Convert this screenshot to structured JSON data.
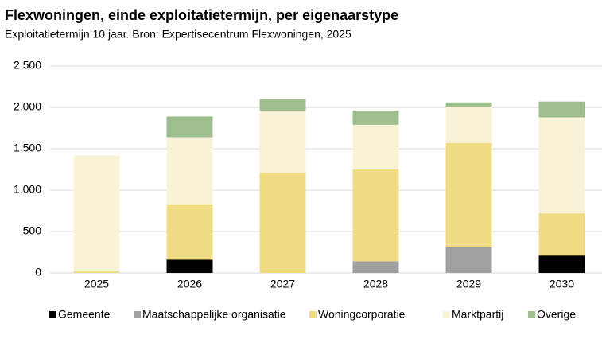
{
  "chart_data": {
    "type": "stacked_bar",
    "title": "Flexwoningen, einde exploitatietermijn, per eigenaarstype",
    "subtitle": "Exploitatietermijn 10 jaar. Bron: Expertisecentrum Flexwoningen, 2025",
    "categories": [
      "2025",
      "2026",
      "2027",
      "2028",
      "2029",
      "2030"
    ],
    "series": [
      {
        "name": "Gemeente",
        "color": "#000000",
        "values": [
          0,
          160,
          0,
          0,
          0,
          210
        ]
      },
      {
        "name": "Maatschappelijke organisatie",
        "color": "#a0a0a0",
        "values": [
          0,
          0,
          0,
          140,
          310,
          0
        ]
      },
      {
        "name": "Woningcorporatie",
        "color": "#efdc85",
        "values": [
          20,
          670,
          1210,
          1110,
          1260,
          510
        ]
      },
      {
        "name": "Marktpartij",
        "color": "#f8f2d6",
        "values": [
          1400,
          810,
          750,
          540,
          440,
          1160
        ]
      },
      {
        "name": "Overige",
        "color": "#9fbe8d",
        "values": [
          0,
          250,
          140,
          170,
          50,
          190
        ]
      }
    ],
    "ylim": [
      0,
      2500
    ],
    "yticks": [
      0,
      {
        "value": 500,
        "label": "500"
      },
      {
        "value": 1000,
        "label": "1.000"
      },
      {
        "value": 1500,
        "label": "1.500"
      },
      {
        "value": 2000,
        "label": "2.000"
      },
      {
        "value": 2500,
        "label": "2.500"
      }
    ],
    "grid": true,
    "legend": "bottom"
  }
}
